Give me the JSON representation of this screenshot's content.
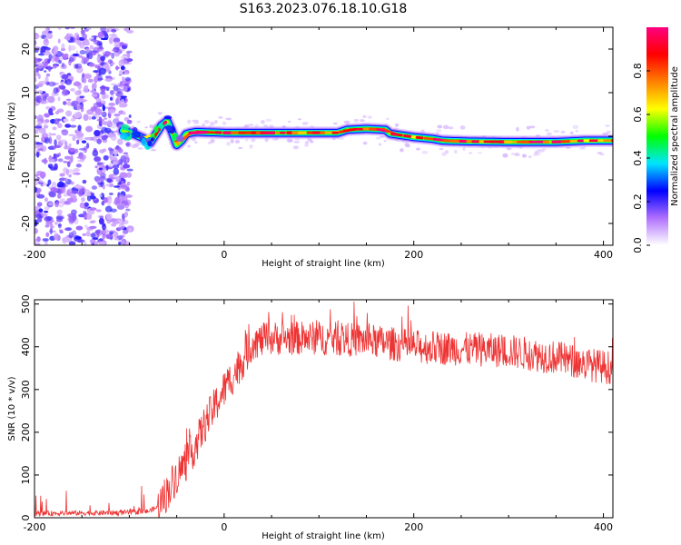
{
  "figure_title": "S163.2023.076.18.10.G18",
  "chart_data": [
    {
      "type": "heatmap",
      "title": "S163.2023.076.18.10.G18",
      "xlabel": "Height of straight line (km)",
      "ylabel": "Frequency (Hz)",
      "xlim": [
        -200,
        410
      ],
      "ylim": [
        -25,
        25
      ],
      "x_ticks": [
        -200,
        0,
        200,
        400
      ],
      "y_ticks": [
        -20,
        -10,
        0,
        10,
        20
      ],
      "noise_region_km": [
        -200,
        -105
      ],
      "ridge": {
        "x": [
          -107,
          -95,
          -85,
          -78,
          -72,
          -66,
          -60,
          -55,
          -50,
          -45,
          -40,
          -35,
          -30,
          0,
          50,
          100,
          120,
          130,
          150,
          170,
          175,
          200,
          210,
          220,
          230,
          260,
          300,
          350,
          380,
          410
        ],
        "y": [
          1.3,
          0.5,
          -0.5,
          -1.5,
          0.5,
          2.5,
          3.5,
          1.0,
          -2.0,
          -1.0,
          0.5,
          0.8,
          1.0,
          0.8,
          0.8,
          0.8,
          0.8,
          1.5,
          1.7,
          1.5,
          0.6,
          -0.2,
          -0.4,
          -0.6,
          -1.0,
          -1.2,
          -1.3,
          -1.3,
          -1.0,
          -1.0
        ]
      },
      "colorbar": {
        "label": "Normalized spectral amplitude",
        "range": [
          0,
          1
        ],
        "ticks": [
          "0.0",
          "0.2",
          "0.4",
          "0.6",
          "0.8"
        ],
        "colors": [
          "#ffffff",
          "#b070ff",
          "#0000ff",
          "#00e5ff",
          "#00ff00",
          "#ffff00",
          "#ff8000",
          "#ff0000",
          "#ff0080"
        ]
      }
    },
    {
      "type": "line",
      "xlabel": "Height of straight line (km)",
      "ylabel": "SNR (10 * v/v)",
      "xlim": [
        -200,
        410
      ],
      "ylim": [
        0,
        510
      ],
      "x_ticks": [
        -200,
        0,
        200,
        400
      ],
      "y_ticks": [
        0,
        100,
        200,
        300,
        400,
        500
      ],
      "color": "#ee3333",
      "trend": {
        "x": [
          -200,
          -100,
          -80,
          -70,
          -60,
          -50,
          -40,
          -30,
          -20,
          -10,
          0,
          10,
          20,
          30,
          50,
          100,
          150,
          200,
          250,
          300,
          350,
          380,
          410
        ],
        "y": [
          10,
          12,
          15,
          25,
          60,
          100,
          130,
          170,
          220,
          260,
          300,
          335,
          370,
          410,
          420,
          420,
          415,
          400,
          395,
          390,
          375,
          360,
          350
        ]
      }
    }
  ]
}
